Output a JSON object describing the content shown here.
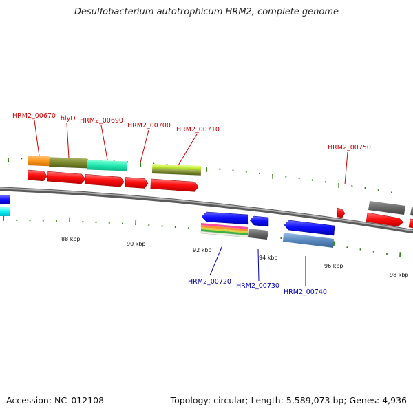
{
  "title": "Desulfobacterium autotrophicum HRM2, complete genome",
  "footer": {
    "accession": "Accession: NC_012108",
    "stats": "Topology: circular; Length: 5,589,073 bp; Genes: 4,936"
  },
  "colors": {
    "forward_label": "#cc0000",
    "reverse_label": "#0000aa",
    "forward_cds": "#ff0000",
    "reverse_cds": "#0000ff",
    "tick": "#2e7d12",
    "backbone": "#888888"
  },
  "scale_labels": [
    {
      "text": "88 kbp",
      "kbp": 88
    },
    {
      "text": "90 kbp",
      "kbp": 90
    },
    {
      "text": "92 kbp",
      "kbp": 92
    },
    {
      "text": "94 kbp",
      "kbp": 94
    },
    {
      "text": "96 kbp",
      "kbp": 96
    },
    {
      "text": "98 kbp",
      "kbp": 98
    }
  ],
  "gene_labels_forward": [
    "HRM2_00670",
    "hlyD",
    "HRM2_00690",
    "HRM2_00700",
    "HRM2_00710",
    "HRM2_00750"
  ],
  "gene_labels_reverse": [
    "HRM2_00720",
    "HRM2_00730",
    "HRM2_00740"
  ]
}
